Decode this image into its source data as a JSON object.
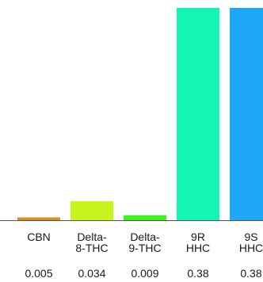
{
  "chart_data": {
    "type": "bar",
    "categories": [
      [
        "CBN"
      ],
      [
        "Delta-",
        "8-THC"
      ],
      [
        "Delta-",
        "9-THC"
      ],
      [
        "9R",
        "HHC"
      ],
      [
        "9S",
        "HHC"
      ]
    ],
    "values": [
      0.005,
      0.034,
      0.009,
      0.38,
      0.38
    ],
    "value_labels": [
      "0.005",
      "0.034",
      "0.009",
      "0.38",
      "0.38"
    ],
    "colors": [
      "#e08a1e",
      "#c8f51e",
      "#3cf51e",
      "#14f5b4",
      "#1ea8f5"
    ],
    "axis_color": "#555555",
    "title": "",
    "xlabel": "",
    "ylabel": "",
    "ylim": [
      0,
      0.38
    ],
    "grid": false,
    "legend": "none"
  }
}
